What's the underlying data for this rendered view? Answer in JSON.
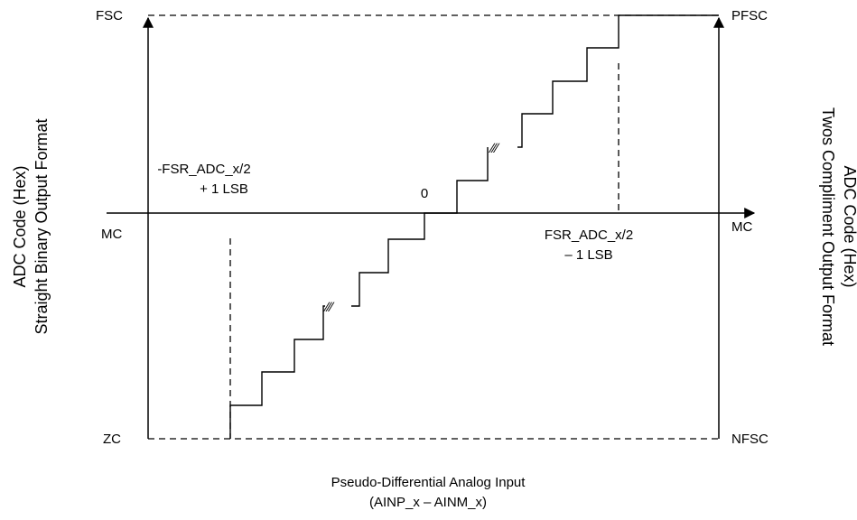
{
  "left_axis": {
    "title": "ADC Code (Hex)",
    "subtitle": "Straight Binary Output Format",
    "top_code": "FSC",
    "mid_code": "MC",
    "bottom_code": "ZC"
  },
  "right_axis": {
    "title": "ADC Code (Hex)",
    "subtitle": "Twos Compliment Output Format",
    "top_code": "PFSC",
    "mid_code": "MC",
    "bottom_code": "NFSC"
  },
  "x_axis": {
    "title": "Pseudo-Differential Analog Input",
    "subtitle": "(AINP_x – AINM_x)",
    "zero_label": "0",
    "neg_fs_label_line1": "-FSR_ADC_x/2",
    "neg_fs_label_line2": "+ 1 LSB",
    "pos_fs_label_line1": "FSR_ADC_x/2",
    "pos_fs_label_line2": "– 1 LSB"
  },
  "break_symbol": "∕∕∕"
}
